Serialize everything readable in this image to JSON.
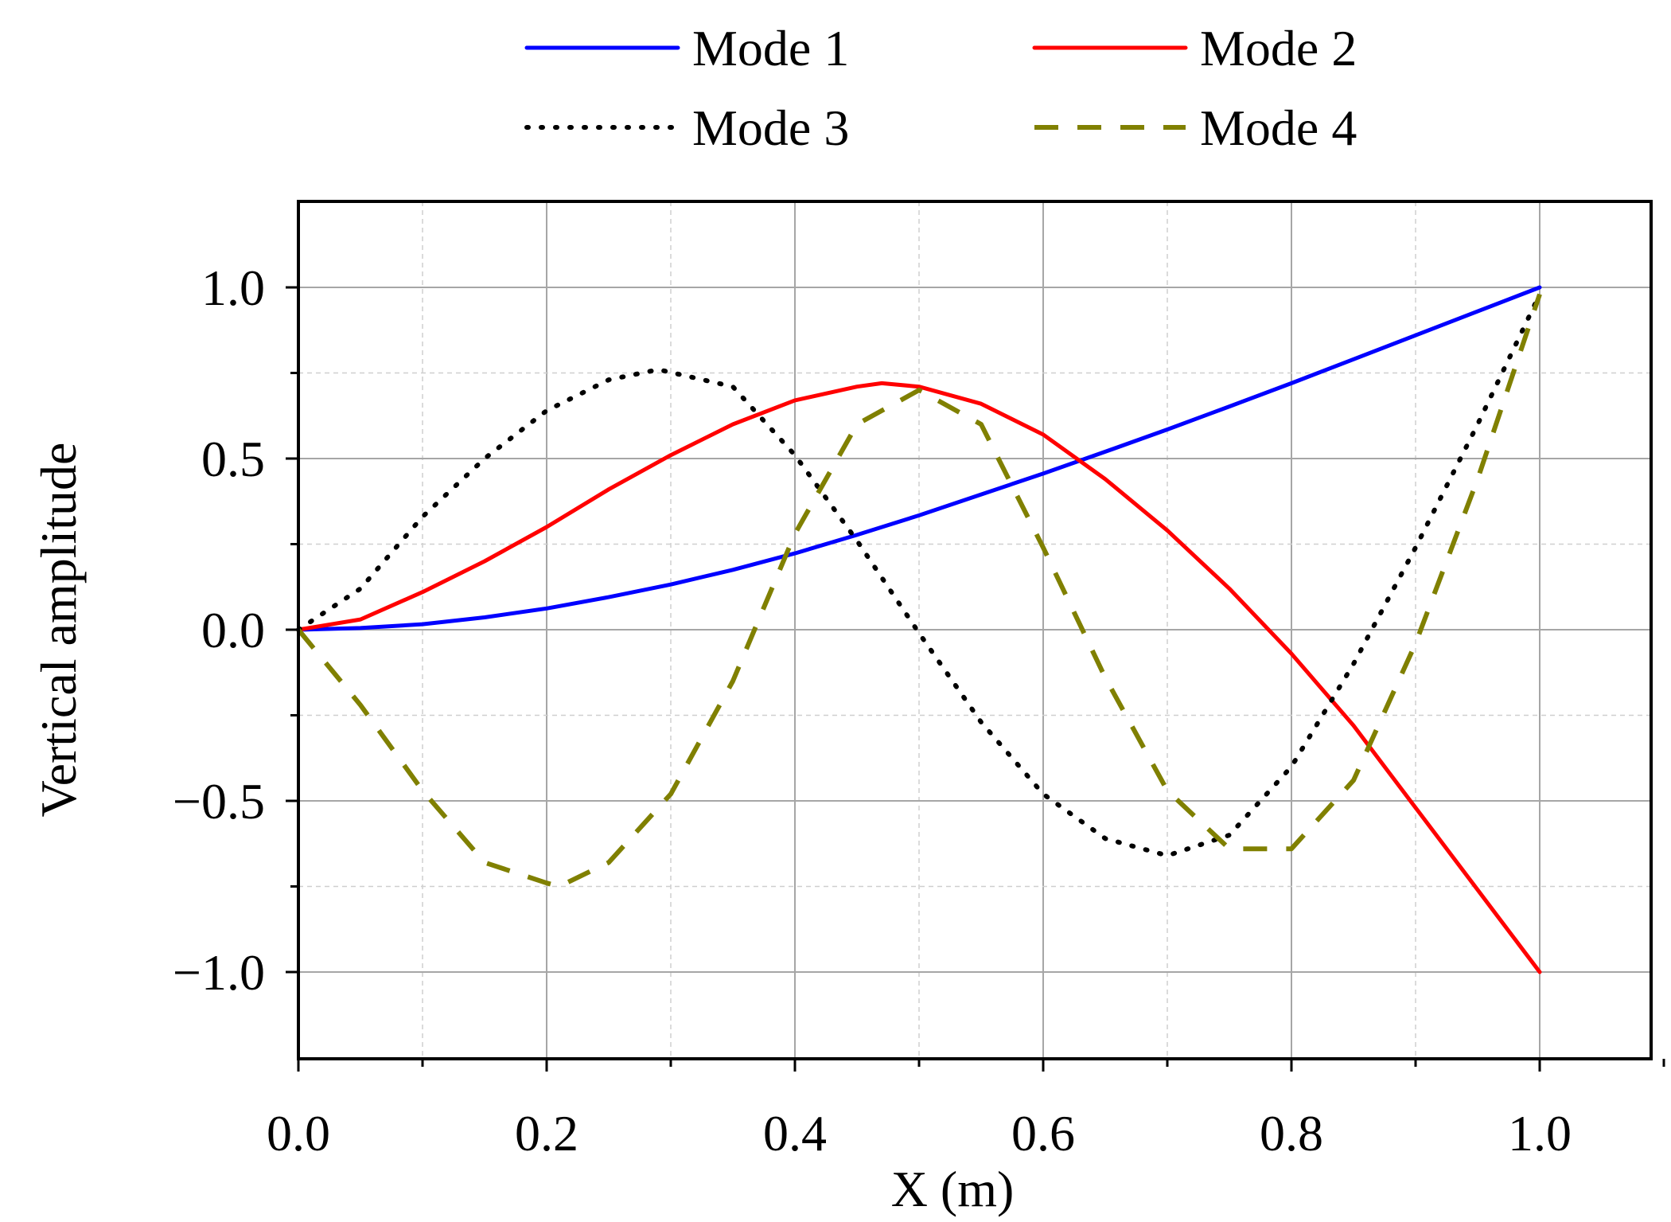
{
  "chart_data": {
    "type": "line",
    "title": "",
    "xlabel": "X (m)",
    "ylabel": "Vertical amplitude",
    "xlim": [
      0.0,
      1.1
    ],
    "ylim": [
      -1.25,
      1.25
    ],
    "x_ticks": [
      0.0,
      0.2,
      0.4,
      0.6,
      0.8,
      1.0
    ],
    "x_tick_labels": [
      "0.0",
      "0.2",
      "0.4",
      "0.6",
      "0.8",
      "1.0"
    ],
    "y_ticks": [
      1.0,
      0.5,
      0.0,
      -0.5,
      -1.0
    ],
    "y_tick_labels": [
      "1.0",
      "0.5",
      "0.0",
      "−0.5",
      "−1.0"
    ],
    "grid": true,
    "legend_position": "top",
    "series": [
      {
        "name": "Mode 1",
        "color": "#0000ff",
        "style": "solid",
        "x": [
          0.0,
          0.05,
          0.1,
          0.15,
          0.2,
          0.25,
          0.3,
          0.35,
          0.4,
          0.45,
          0.5,
          0.55,
          0.6,
          0.65,
          0.7,
          0.75,
          0.8,
          0.85,
          0.9,
          0.95,
          1.0
        ],
        "y": [
          0.0,
          0.005,
          0.016,
          0.036,
          0.062,
          0.095,
          0.132,
          0.175,
          0.223,
          0.277,
          0.334,
          0.395,
          0.456,
          0.52,
          0.585,
          0.652,
          0.72,
          0.79,
          0.86,
          0.93,
          1.0
        ]
      },
      {
        "name": "Mode 2",
        "color": "#ff0000",
        "style": "solid",
        "x": [
          0.0,
          0.05,
          0.1,
          0.15,
          0.2,
          0.25,
          0.3,
          0.35,
          0.4,
          0.45,
          0.47,
          0.5,
          0.55,
          0.6,
          0.65,
          0.7,
          0.75,
          0.8,
          0.85,
          0.9,
          0.95,
          1.0
        ],
        "y": [
          0.0,
          0.03,
          0.11,
          0.2,
          0.3,
          0.41,
          0.51,
          0.6,
          0.67,
          0.71,
          0.72,
          0.71,
          0.66,
          0.57,
          0.44,
          0.29,
          0.12,
          -0.07,
          -0.28,
          -0.52,
          -0.76,
          -1.0
        ]
      },
      {
        "name": "Mode 3",
        "color": "#000000",
        "style": "dotted",
        "x": [
          0.0,
          0.05,
          0.1,
          0.15,
          0.2,
          0.25,
          0.29,
          0.35,
          0.4,
          0.45,
          0.5,
          0.55,
          0.6,
          0.65,
          0.7,
          0.75,
          0.8,
          0.85,
          0.9,
          0.95,
          1.0
        ],
        "y": [
          0.0,
          0.12,
          0.33,
          0.5,
          0.64,
          0.73,
          0.76,
          0.71,
          0.51,
          0.26,
          -0.01,
          -0.27,
          -0.48,
          -0.61,
          -0.66,
          -0.6,
          -0.4,
          -0.1,
          0.24,
          0.6,
          0.98
        ]
      },
      {
        "name": "Mode 4",
        "color": "#808000",
        "style": "dashed",
        "x": [
          0.0,
          0.05,
          0.1,
          0.15,
          0.2,
          0.21,
          0.25,
          0.3,
          0.35,
          0.4,
          0.45,
          0.5,
          0.55,
          0.6,
          0.65,
          0.7,
          0.75,
          0.8,
          0.85,
          0.9,
          0.95,
          1.0
        ],
        "y": [
          0.0,
          -0.22,
          -0.47,
          -0.68,
          -0.74,
          -0.75,
          -0.68,
          -0.48,
          -0.15,
          0.28,
          0.6,
          0.7,
          0.6,
          0.24,
          -0.14,
          -0.47,
          -0.64,
          -0.64,
          -0.44,
          -0.04,
          0.44,
          0.98
        ]
      }
    ]
  }
}
